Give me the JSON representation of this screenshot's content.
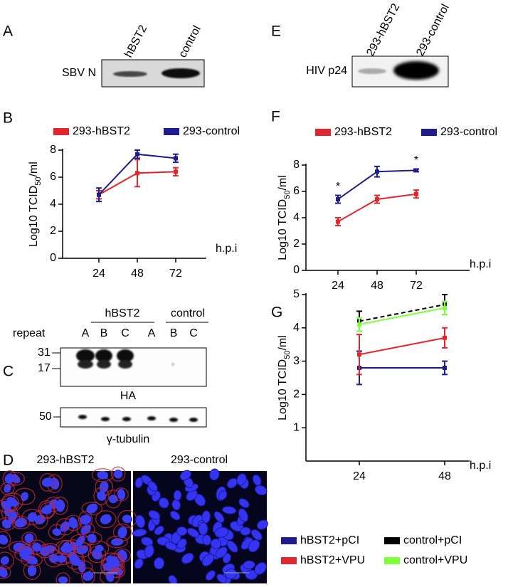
{
  "panels": {
    "A": {
      "label": "A",
      "lanes": [
        "hBST2",
        "control"
      ],
      "band": "SBV N"
    },
    "E": {
      "label": "E",
      "lanes": [
        "293-hBST2",
        "293-control"
      ],
      "band": "HIV p24"
    },
    "B": {
      "label": "B"
    },
    "F": {
      "label": "F"
    },
    "G": {
      "label": "G"
    },
    "C": {
      "label": "C",
      "groups": [
        "hBST2",
        "control"
      ],
      "repeat": "repeat",
      "lanes": [
        "A",
        "B",
        "C",
        "A",
        "B",
        "C"
      ],
      "markers_top": [
        "31",
        "17"
      ],
      "top_band": "HA",
      "markers_bottom": [
        "50"
      ],
      "bottom_band": "γ-tubulin"
    },
    "D": {
      "label": "D",
      "images": [
        "293-hBST2",
        "293-control"
      ]
    }
  },
  "chart_data": [
    {
      "type": "line",
      "ylabel": [
        "Log10 TCID",
        "50",
        "/ml"
      ],
      "xlabel": "h.p.i",
      "categories": [
        "24",
        "48",
        "72"
      ],
      "ylim": [
        0,
        8
      ],
      "yticks": [
        0,
        2,
        4,
        6,
        8
      ],
      "series": [
        {
          "name": "293-hBST2",
          "color": "#e3262b",
          "values": [
            4.7,
            6.3,
            6.4
          ],
          "errors": [
            0.3,
            1.0,
            0.3
          ]
        },
        {
          "name": "293-control",
          "color": "#1d1d8e",
          "values": [
            4.7,
            7.7,
            7.4
          ],
          "errors": [
            0.5,
            0.3,
            0.3
          ]
        }
      ]
    },
    {
      "type": "line",
      "ylabel": [
        "Log10 TCID",
        "50",
        "/ml"
      ],
      "xlabel": "h.p.i",
      "categories": [
        "24",
        "48",
        "72"
      ],
      "ylim": [
        0,
        8
      ],
      "yticks": [
        0,
        2,
        4,
        6,
        8
      ],
      "series": [
        {
          "name": "293-hBST2",
          "color": "#e3262b",
          "values": [
            3.7,
            5.4,
            5.8
          ],
          "errors": [
            0.3,
            0.3,
            0.3
          ]
        },
        {
          "name": "293-control",
          "color": "#1d1d8e",
          "values": [
            5.4,
            7.5,
            7.6
          ],
          "errors": [
            0.3,
            0.4,
            0.1
          ]
        }
      ],
      "annotations": [
        {
          "text": "*",
          "category": "24"
        },
        {
          "text": "*",
          "category": "72"
        }
      ]
    },
    {
      "type": "line",
      "ylabel": [
        "Log10 TCID",
        "50",
        "/ml"
      ],
      "xlabel": "h.p.i",
      "categories": [
        "24",
        "48"
      ],
      "ylim": [
        0,
        5
      ],
      "yticks": [
        1,
        2,
        3,
        4,
        5
      ],
      "series": [
        {
          "name": "hBST2+pCI",
          "color": "#1d1d8e",
          "values": [
            2.8,
            2.8
          ],
          "errors": [
            0.5,
            0.2
          ]
        },
        {
          "name": "hBST2+VPU",
          "color": "#e3262b",
          "values": [
            3.2,
            3.7
          ],
          "errors": [
            0.6,
            0.3
          ]
        },
        {
          "name": "control+pCI",
          "color": "#000000",
          "values": [
            4.2,
            4.7
          ],
          "errors": [
            0.3,
            0.3
          ],
          "dashed": true
        },
        {
          "name": "control+VPU",
          "color": "#7dff3a",
          "values": [
            4.1,
            4.6
          ],
          "errors": [
            0.2,
            0.2
          ]
        }
      ]
    }
  ]
}
